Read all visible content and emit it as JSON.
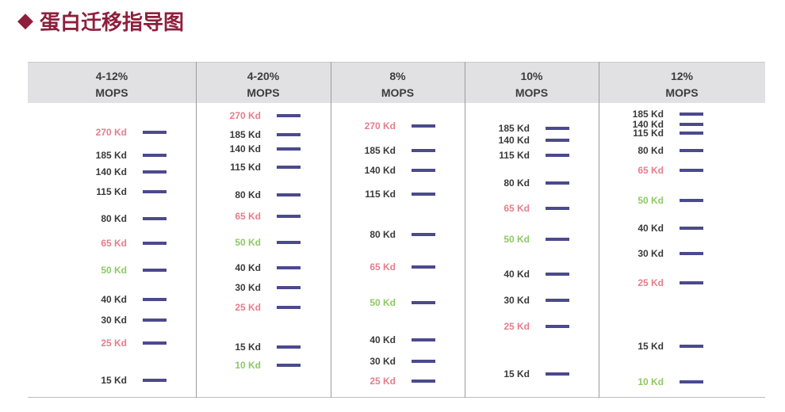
{
  "title": "蛋白迁移指导图",
  "icon": "diamond-icon",
  "colors": {
    "title": "#8e1f3c",
    "bar": "#4b4a8e",
    "marker_default": "#3a3a3a",
    "marker_pink": "#e57d8b",
    "marker_green": "#8ec864",
    "header_bg": "#e1e1e3"
  },
  "columns": [
    {
      "percent": "4-12%",
      "buffer": "MOPS",
      "bands": [
        {
          "label": "270 Kd",
          "color": "pink"
        },
        {
          "label": "185 Kd",
          "color": "default"
        },
        {
          "label": "140 Kd",
          "color": "default"
        },
        {
          "label": "115 Kd",
          "color": "default"
        },
        {
          "label": "80 Kd",
          "color": "default"
        },
        {
          "label": "65 Kd",
          "color": "pink"
        },
        {
          "label": "50 Kd",
          "color": "green"
        },
        {
          "label": "40 Kd",
          "color": "default"
        },
        {
          "label": "30 Kd",
          "color": "default"
        },
        {
          "label": "25 Kd",
          "color": "pink"
        },
        {
          "label": "15 Kd",
          "color": "default"
        }
      ]
    },
    {
      "percent": "4-20%",
      "buffer": "MOPS",
      "bands": [
        {
          "label": "270 Kd",
          "color": "pink"
        },
        {
          "label": "185 Kd",
          "color": "default"
        },
        {
          "label": "140 Kd",
          "color": "default"
        },
        {
          "label": "115 Kd",
          "color": "default"
        },
        {
          "label": "80 Kd",
          "color": "default"
        },
        {
          "label": "65 Kd",
          "color": "pink"
        },
        {
          "label": "50 Kd",
          "color": "green"
        },
        {
          "label": "40 Kd",
          "color": "default"
        },
        {
          "label": "30 Kd",
          "color": "default"
        },
        {
          "label": "25 Kd",
          "color": "pink"
        },
        {
          "label": "15 Kd",
          "color": "default"
        },
        {
          "label": "10 Kd",
          "color": "green"
        }
      ]
    },
    {
      "percent": "8%",
      "buffer": "MOPS",
      "bands": [
        {
          "label": "270 Kd",
          "color": "pink"
        },
        {
          "label": "185 Kd",
          "color": "default"
        },
        {
          "label": "140 Kd",
          "color": "default"
        },
        {
          "label": "115 Kd",
          "color": "default"
        },
        {
          "label": "80 Kd",
          "color": "default"
        },
        {
          "label": "65 Kd",
          "color": "pink"
        },
        {
          "label": "50 Kd",
          "color": "green"
        },
        {
          "label": "40 Kd",
          "color": "default"
        },
        {
          "label": "30 Kd",
          "color": "default"
        },
        {
          "label": "25 Kd",
          "color": "pink"
        }
      ]
    },
    {
      "percent": "10%",
      "buffer": "MOPS",
      "bands": [
        {
          "label": "185 Kd",
          "color": "default"
        },
        {
          "label": "140 Kd",
          "color": "default"
        },
        {
          "label": "115 Kd",
          "color": "default"
        },
        {
          "label": "80 Kd",
          "color": "default"
        },
        {
          "label": "65 Kd",
          "color": "pink"
        },
        {
          "label": "50 Kd",
          "color": "green"
        },
        {
          "label": "40 Kd",
          "color": "default"
        },
        {
          "label": "30 Kd",
          "color": "default"
        },
        {
          "label": "25 Kd",
          "color": "pink"
        },
        {
          "label": "15 Kd",
          "color": "default"
        }
      ]
    },
    {
      "percent": "12%",
      "buffer": "MOPS",
      "bands": [
        {
          "label": "185 Kd",
          "color": "default"
        },
        {
          "label": "140 Kd",
          "color": "default"
        },
        {
          "label": "115 Kd",
          "color": "default"
        },
        {
          "label": "80 Kd",
          "color": "default"
        },
        {
          "label": "65 Kd",
          "color": "pink"
        },
        {
          "label": "50 Kd",
          "color": "green"
        },
        {
          "label": "40 Kd",
          "color": "default"
        },
        {
          "label": "30 Kd",
          "color": "default"
        },
        {
          "label": "25 Kd",
          "color": "pink"
        },
        {
          "label": "15 Kd",
          "color": "default"
        },
        {
          "label": "10 Kd",
          "color": "green"
        }
      ]
    }
  ]
}
